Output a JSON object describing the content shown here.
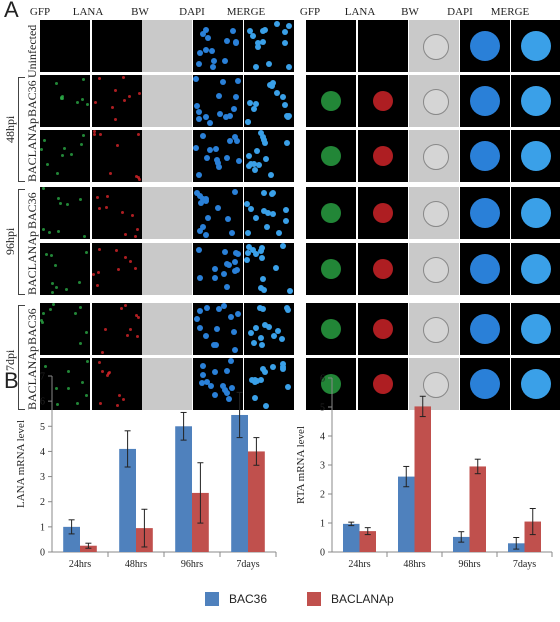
{
  "panel_a": {
    "letter": "A",
    "columns": [
      "GFP",
      "LANA",
      "BW",
      "DAPI",
      "MERGE"
    ],
    "groups": [
      {
        "label": "",
        "rows": [
          "Uninfected"
        ]
      },
      {
        "label": "48hpi",
        "rows": [
          "BAC36",
          "BACLANAp"
        ]
      },
      {
        "label": "96hpi",
        "rows": [
          "BAC36",
          "BACLANAp"
        ]
      },
      {
        "label": "7dpi",
        "rows": [
          "BAC36",
          "BACLANAp"
        ]
      }
    ]
  },
  "panel_b": {
    "letter": "B",
    "legend": [
      {
        "name": "BAC36",
        "color": "#4f81bd"
      },
      {
        "name": "BACLANAp",
        "color": "#c0504d"
      }
    ]
  },
  "chart_data": [
    {
      "type": "bar",
      "ylabel": "LANA mRNA level",
      "ylim": [
        0,
        7
      ],
      "yticks": [
        "0",
        "1",
        "2",
        "3",
        "4",
        "5",
        "6",
        "7"
      ],
      "categories": [
        "24hrs",
        "48hrs",
        "96hrs",
        "7days"
      ],
      "series": [
        {
          "name": "BAC36",
          "color": "#4f81bd",
          "values": [
            1.0,
            4.1,
            5.0,
            5.45
          ],
          "errors": [
            0.28,
            0.72,
            0.55,
            0.9
          ]
        },
        {
          "name": "BACLANAp",
          "color": "#c0504d",
          "values": [
            0.25,
            0.95,
            2.35,
            4.0
          ],
          "errors": [
            0.1,
            0.75,
            1.2,
            0.55
          ]
        }
      ]
    },
    {
      "type": "bar",
      "ylabel": "RTA mRNA level",
      "ylim": [
        0,
        6
      ],
      "yticks": [
        "0",
        "1",
        "2",
        "3",
        "4",
        "5",
        "6"
      ],
      "categories": [
        "24hrs",
        "48hrs",
        "96hrs",
        "7days"
      ],
      "series": [
        {
          "name": "BAC36",
          "color": "#4f81bd",
          "values": [
            0.97,
            2.6,
            0.52,
            0.3
          ],
          "errors": [
            0.06,
            0.35,
            0.18,
            0.2
          ]
        },
        {
          "name": "BACLANAp",
          "color": "#c0504d",
          "values": [
            0.72,
            5.02,
            2.95,
            1.05
          ],
          "errors": [
            0.12,
            0.35,
            0.25,
            0.45
          ]
        }
      ]
    }
  ]
}
